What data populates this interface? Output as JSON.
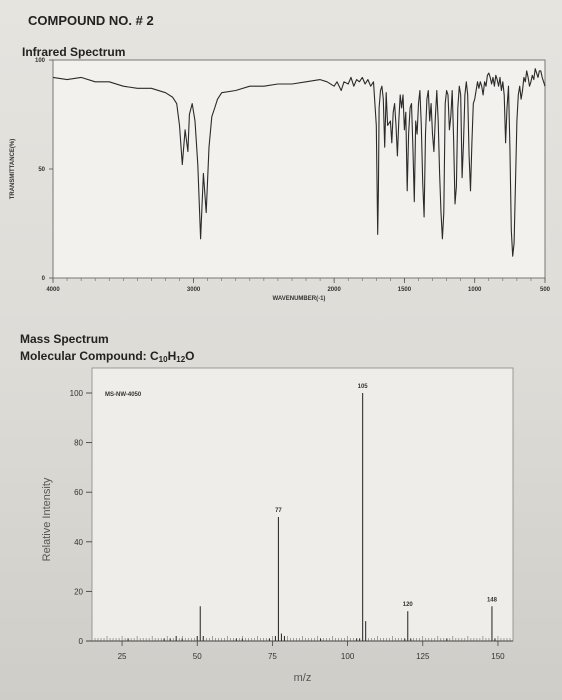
{
  "page": {
    "compound_title": "COMPOUND NO. # 2",
    "ir_title": "Infrared Spectrum",
    "ms_title": "Mass Spectrum",
    "ms_formula_prefix": "Molecular Compound: C",
    "ms_formula_c": "10",
    "ms_formula_h_letter": "H",
    "ms_formula_h": "12",
    "ms_formula_o": "O"
  },
  "chart_data": [
    {
      "type": "line",
      "title": "Infrared Spectrum",
      "xlabel": "WAVENUMBER(-1)",
      "ylabel": "TRANSMITTANCE(%)",
      "xlim": [
        4000,
        500
      ],
      "ylim": [
        0,
        100
      ],
      "xticks": [
        "4000",
        "3000",
        "2000",
        "1500",
        "1000",
        "500"
      ],
      "yticks": [
        "0",
        "50",
        "100"
      ],
      "series": [
        {
          "x": [
            4000,
            3900,
            3800,
            3700,
            3600,
            3500,
            3400,
            3300,
            3200,
            3150,
            3120,
            3100,
            3080,
            3060,
            3040,
            3030,
            3010,
            2990,
            2970,
            2950,
            2930,
            2910,
            2890,
            2870,
            2850,
            2830,
            2800,
            2700,
            2600,
            2500,
            2400,
            2300,
            2200,
            2100,
            2050,
            2000,
            1980,
            1950,
            1930,
            1900,
            1880,
            1860,
            1840,
            1820,
            1800,
            1780,
            1760,
            1740,
            1720,
            1700,
            1690,
            1685,
            1680,
            1670,
            1660,
            1650,
            1640,
            1630,
            1620,
            1600,
            1590,
            1580,
            1570,
            1560,
            1550,
            1540,
            1530,
            1520,
            1510,
            1500,
            1490,
            1480,
            1470,
            1460,
            1450,
            1440,
            1430,
            1420,
            1410,
            1400,
            1390,
            1380,
            1370,
            1360,
            1350,
            1340,
            1330,
            1320,
            1310,
            1300,
            1290,
            1280,
            1270,
            1260,
            1250,
            1240,
            1230,
            1220,
            1210,
            1200,
            1190,
            1180,
            1170,
            1160,
            1150,
            1140,
            1130,
            1120,
            1110,
            1100,
            1090,
            1080,
            1070,
            1060,
            1050,
            1040,
            1030,
            1020,
            1010,
            1000,
            990,
            980,
            970,
            960,
            950,
            940,
            930,
            920,
            910,
            900,
            890,
            880,
            870,
            860,
            850,
            840,
            830,
            820,
            810,
            800,
            790,
            780,
            770,
            760,
            750,
            740,
            730,
            720,
            710,
            700,
            690,
            680,
            670,
            660,
            650,
            640,
            630,
            620,
            610,
            600,
            590,
            580,
            570,
            560,
            550,
            540,
            530,
            520,
            510,
            500
          ],
          "y": [
            92,
            91,
            92,
            90,
            90,
            88,
            87,
            87,
            85,
            83,
            80,
            70,
            52,
            68,
            58,
            75,
            80,
            72,
            52,
            18,
            48,
            30,
            60,
            74,
            78,
            82,
            85,
            86,
            88,
            88,
            89,
            89,
            90,
            91,
            90,
            88,
            90,
            86,
            90,
            89,
            92,
            88,
            91,
            90,
            92,
            89,
            91,
            88,
            90,
            70,
            20,
            40,
            78,
            86,
            88,
            82,
            60,
            85,
            70,
            72,
            62,
            76,
            80,
            70,
            56,
            72,
            84,
            78,
            84,
            68,
            76,
            40,
            66,
            78,
            80,
            60,
            35,
            72,
            66,
            80,
            86,
            70,
            44,
            28,
            66,
            82,
            86,
            72,
            80,
            66,
            58,
            74,
            86,
            72,
            48,
            30,
            18,
            30,
            80,
            86,
            84,
            68,
            74,
            86,
            64,
            34,
            42,
            78,
            88,
            84,
            46,
            62,
            84,
            90,
            84,
            56,
            40,
            62,
            80,
            82,
            86,
            90,
            87,
            90,
            88,
            84,
            90,
            88,
            93,
            94,
            92,
            89,
            92,
            88,
            93,
            91,
            88,
            92,
            86,
            90,
            84,
            62,
            78,
            88,
            60,
            22,
            10,
            16,
            44,
            72,
            84,
            88,
            82,
            86,
            92,
            90,
            95,
            92,
            88,
            90,
            93,
            91,
            96,
            94,
            92,
            95,
            95,
            92,
            90,
            88
          ]
        }
      ]
    },
    {
      "type": "bar",
      "title": "Mass Spectrum",
      "annotation": "MS-NW-4050",
      "xlabel": "m/z",
      "ylabel": "Relative Intensity",
      "xlim": [
        15,
        155
      ],
      "ylim": [
        0,
        100
      ],
      "xticks": [
        25,
        50,
        75,
        100,
        125,
        150
      ],
      "yticks": [
        0,
        20,
        40,
        60,
        80,
        100
      ],
      "x": [
        27,
        39,
        41,
        43,
        45,
        50,
        51,
        52,
        63,
        65,
        74,
        76,
        77,
        78,
        79,
        91,
        103,
        104,
        105,
        106,
        119,
        120,
        121,
        133,
        148,
        149
      ],
      "values": [
        1,
        1,
        1,
        2,
        1,
        2,
        14,
        2,
        1,
        1,
        1,
        2,
        50,
        3,
        2,
        1,
        1,
        1,
        100,
        8,
        1,
        12,
        1,
        1,
        14,
        1
      ],
      "data_labels": [
        {
          "x": 77,
          "text": "77"
        },
        {
          "x": 105,
          "text": "105"
        },
        {
          "x": 120,
          "text": "120"
        },
        {
          "x": 148,
          "text": "148"
        }
      ]
    }
  ]
}
